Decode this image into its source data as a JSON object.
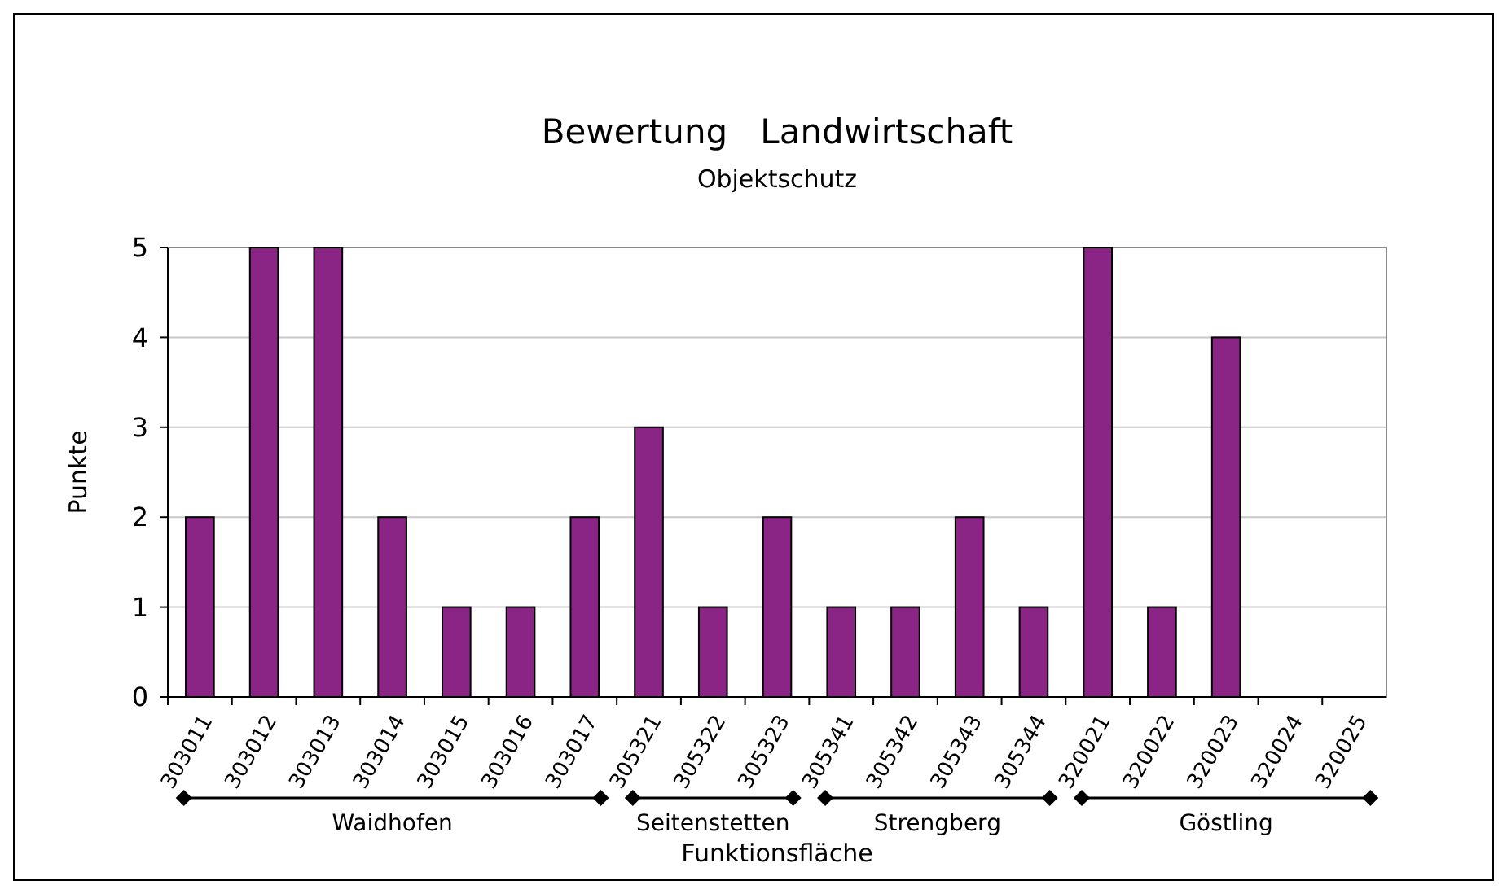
{
  "chart_data": {
    "type": "bar",
    "title": "Bewertung   Landwirtschaft",
    "subtitle": "Objektschutz",
    "xlabel": "Funktionsfläche",
    "ylabel": "Punkte",
    "categories": [
      "303011",
      "303012",
      "303013",
      "303014",
      "303015",
      "303016",
      "303017",
      "305321",
      "305322",
      "305323",
      "305341",
      "305342",
      "305343",
      "305344",
      "320021",
      "320022",
      "320023",
      "320024",
      "320025"
    ],
    "values": [
      2,
      5,
      5,
      2,
      1,
      1,
      2,
      3,
      1,
      2,
      1,
      1,
      2,
      1,
      5,
      1,
      4,
      0,
      0
    ],
    "color": "#8b2585",
    "ylim": [
      0,
      5
    ],
    "yticks": [
      0,
      1,
      2,
      3,
      4,
      5
    ],
    "grid": "y",
    "annotations": [
      "Waidhofen",
      "Seitenstetten",
      "Strengberg",
      "Göstling"
    ]
  }
}
